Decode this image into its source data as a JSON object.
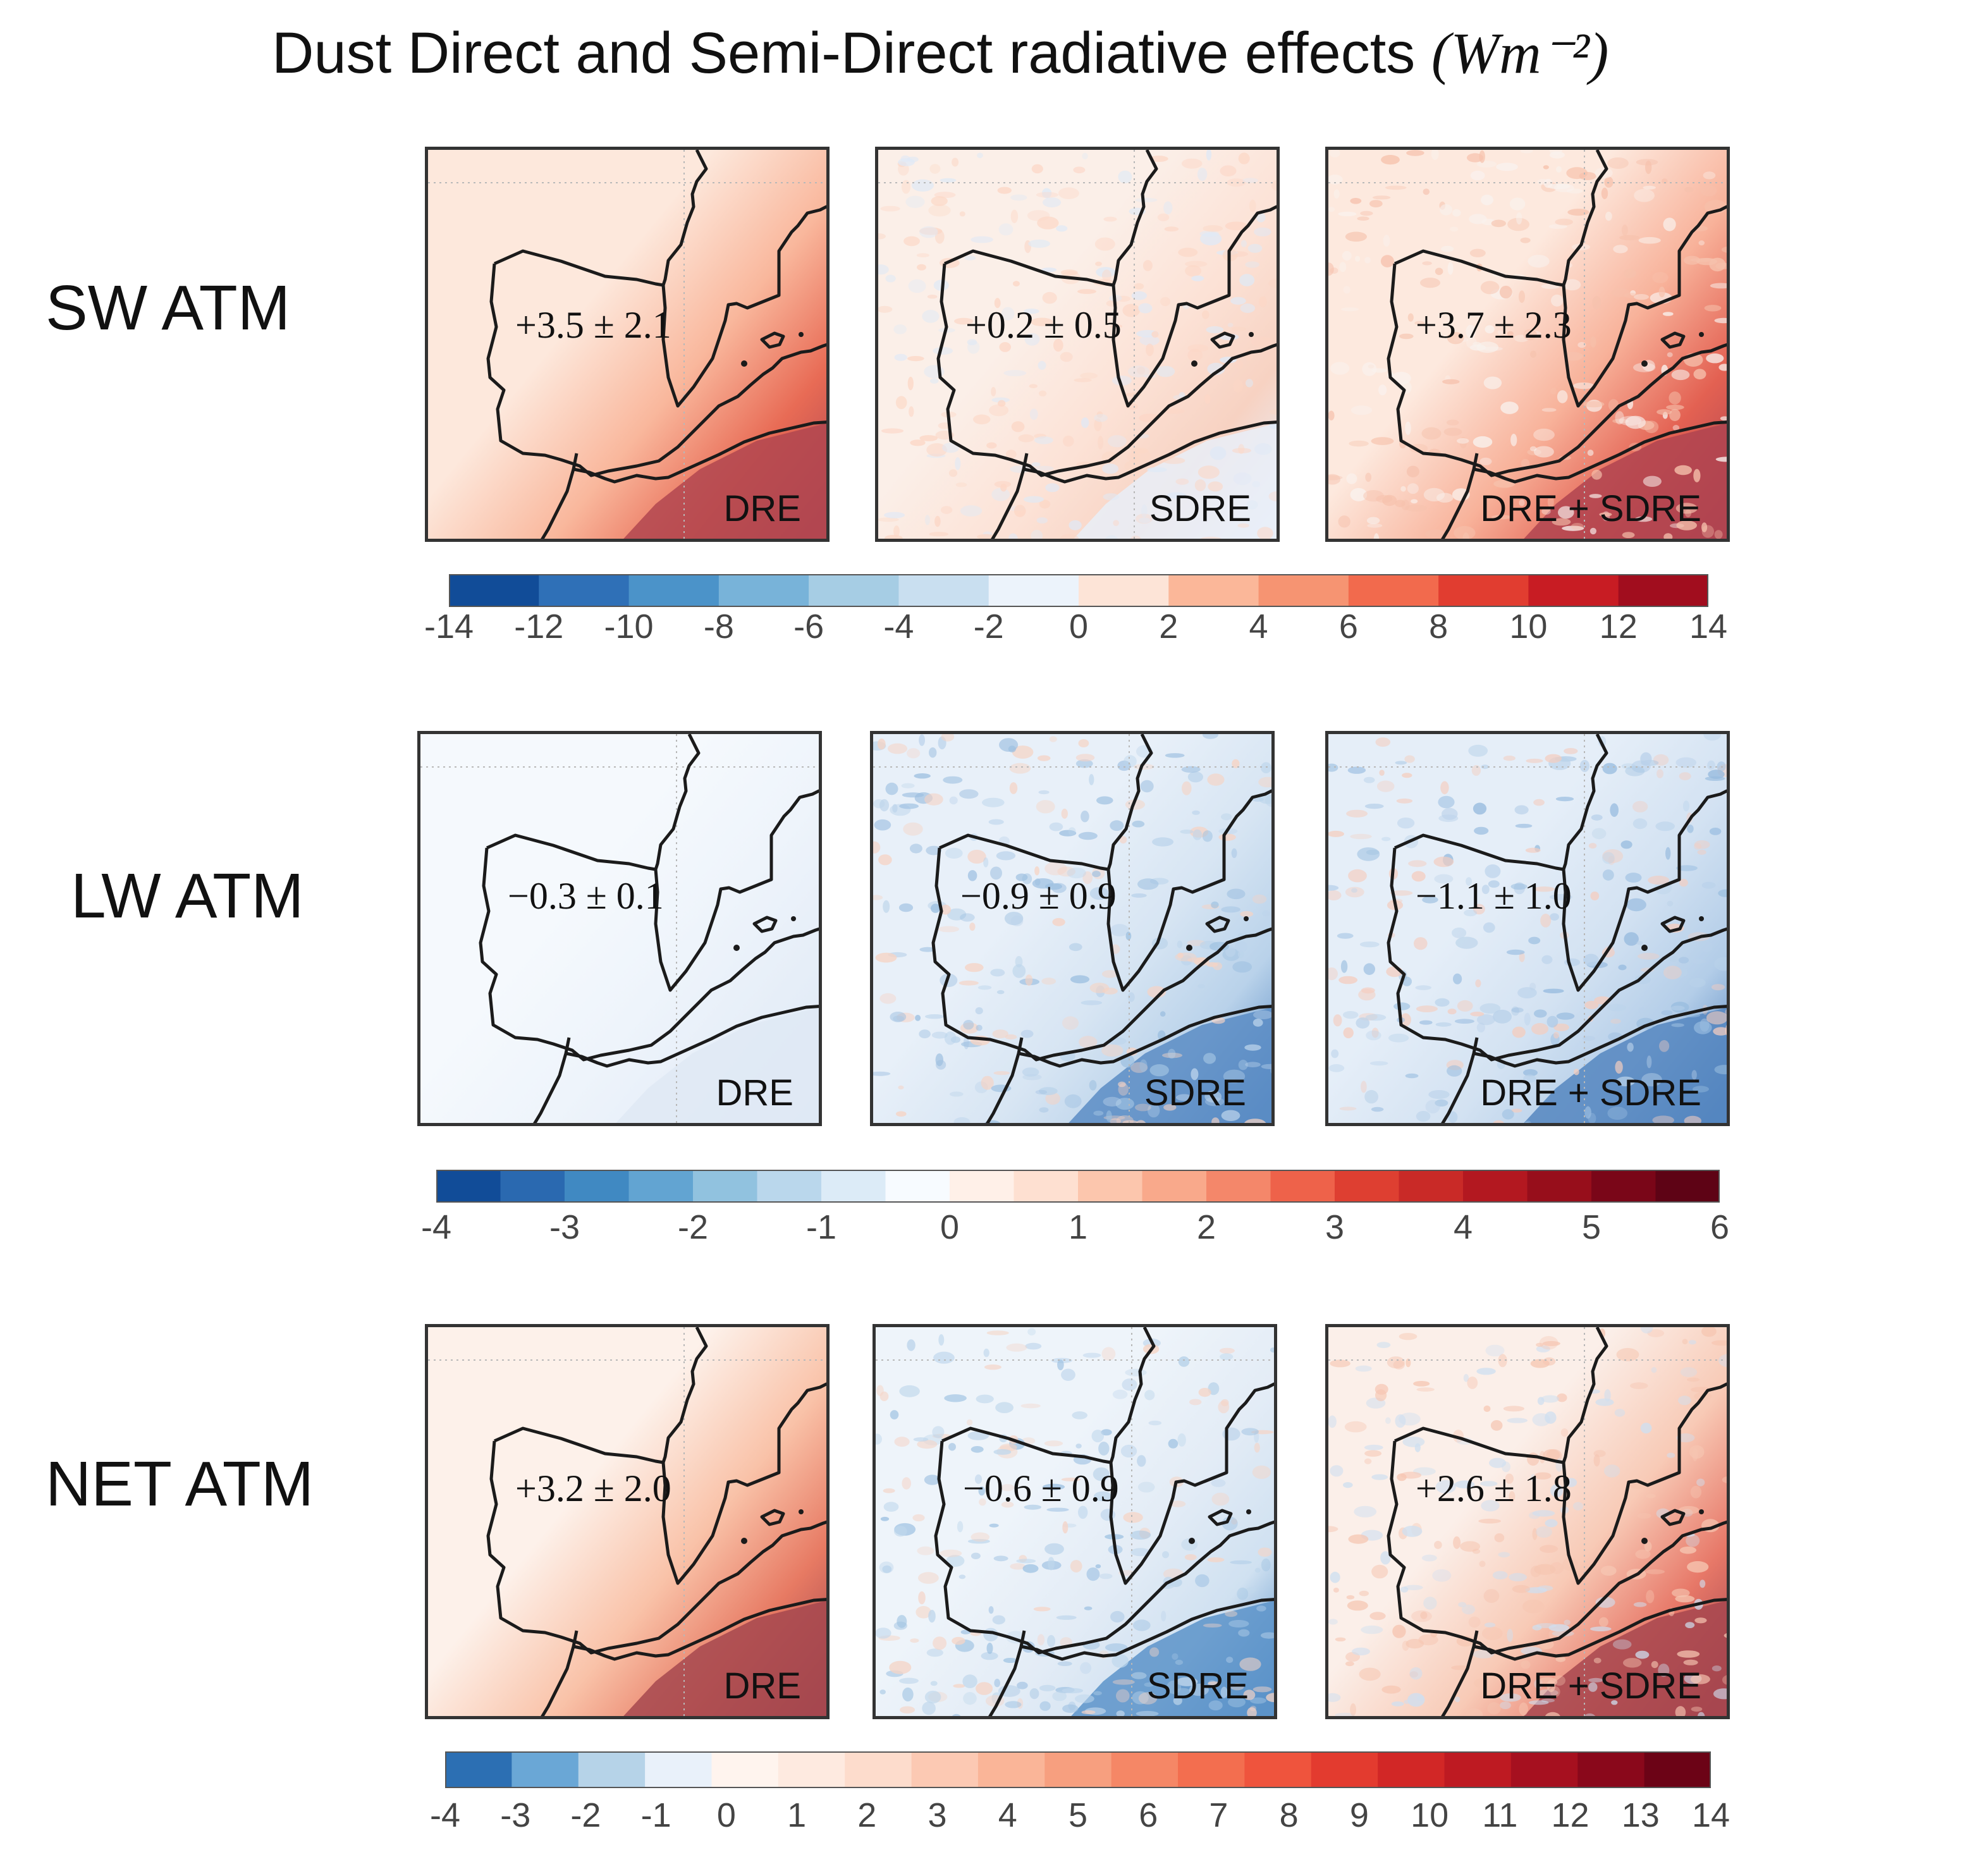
{
  "title": "Dust Direct and Semi-Direct radiative effects",
  "unit": "(Wm⁻²)",
  "rows": [
    {
      "label": "SW ATM",
      "panels": [
        {
          "label": "DRE",
          "stat": "+3.5 ± 2.1",
          "scheme": "sw_dre"
        },
        {
          "label": "SDRE",
          "stat": "+0.2 ± 0.5",
          "scheme": "sw_sdre"
        },
        {
          "label": "DRE + SDRE",
          "stat": "+3.7 ± 2.3",
          "scheme": "sw_sum"
        }
      ],
      "colorbar": {
        "ticks": [
          "-14",
          "-12",
          "-10",
          "-8",
          "-6",
          "-4",
          "-2",
          "0",
          "2",
          "4",
          "6",
          "8",
          "10",
          "12",
          "14"
        ],
        "colors": [
          "#114c98",
          "#2f70b7",
          "#4b93c9",
          "#78b3d9",
          "#a6cde4",
          "#c9dff0",
          "#ecf3fb",
          "#fde4d7",
          "#fbb799",
          "#f69472",
          "#f26a4d",
          "#e13d30",
          "#c81c23",
          "#a10d1e"
        ]
      }
    },
    {
      "label": "LW ATM",
      "panels": [
        {
          "label": "DRE",
          "stat": "−0.3 ± 0.1",
          "scheme": "lw_dre"
        },
        {
          "label": "SDRE",
          "stat": "−0.9 ± 0.9",
          "scheme": "lw_sdre"
        },
        {
          "label": "DRE + SDRE",
          "stat": "−1.1 ± 1.0",
          "scheme": "lw_sum"
        }
      ],
      "colorbar": {
        "ticks": [
          "-4",
          "-3",
          "-2",
          "-1",
          "0",
          "1",
          "2",
          "3",
          "4",
          "5",
          "6"
        ],
        "colors": [
          "#114c98",
          "#2a69b0",
          "#4089c2",
          "#62a4d2",
          "#91c2df",
          "#bad7ec",
          "#dcebf7",
          "#f7fbff",
          "#fff0e8",
          "#fee0d1",
          "#fcc6ad",
          "#f9a98b",
          "#f4876a",
          "#ee624a",
          "#de3f31",
          "#c92a27",
          "#b31820",
          "#970e1b",
          "#7a0618",
          "#5e0315"
        ]
      }
    },
    {
      "label": "NET ATM",
      "panels": [
        {
          "label": "DRE",
          "stat": "+3.2 ± 2.0",
          "scheme": "net_dre"
        },
        {
          "label": "SDRE",
          "stat": "−0.6 ± 0.9",
          "scheme": "net_sdre"
        },
        {
          "label": "DRE + SDRE",
          "stat": "+2.6 ± 1.8",
          "scheme": "net_sum"
        }
      ],
      "colorbar": {
        "ticks": [
          "-4",
          "-3",
          "-2",
          "-1",
          "0",
          "1",
          "2",
          "3",
          "4",
          "5",
          "6",
          "7",
          "8",
          "9",
          "10",
          "11",
          "12",
          "13",
          "14"
        ],
        "colors": [
          "#2c6fb3",
          "#6aa7d6",
          "#b6d3e8",
          "#e9f1fa",
          "#fff4ee",
          "#feeae0",
          "#fddccc",
          "#fcc9b3",
          "#fab598",
          "#f79f7f",
          "#f58766",
          "#f36e4f",
          "#ef543d",
          "#e33b2f",
          "#d22726",
          "#be1a22",
          "#a6101f",
          "#8a081b",
          "#6c0316"
        ]
      }
    }
  ],
  "chart_data": {
    "type": "heatmap",
    "title": "Dust Direct and Semi-Direct radiative effects (Wm⁻²)",
    "rows": [
      "SW ATM",
      "LW ATM",
      "NET ATM"
    ],
    "columns": [
      "DRE",
      "SDRE",
      "DRE + SDRE"
    ],
    "panel_stats": [
      [
        {
          "mean": 3.5,
          "std": 2.1
        },
        {
          "mean": 0.2,
          "std": 0.5
        },
        {
          "mean": 3.7,
          "std": 2.3
        }
      ],
      [
        {
          "mean": -0.3,
          "std": 0.1
        },
        {
          "mean": -0.9,
          "std": 0.9
        },
        {
          "mean": -1.1,
          "std": 1.0
        }
      ],
      [
        {
          "mean": 3.2,
          "std": 2.0
        },
        {
          "mean": -0.6,
          "std": 0.9
        },
        {
          "mean": 2.6,
          "std": 1.8
        }
      ]
    ],
    "colorbar_ranges": [
      [
        -14,
        14
      ],
      [
        -4,
        6
      ],
      [
        -4,
        14
      ]
    ]
  }
}
